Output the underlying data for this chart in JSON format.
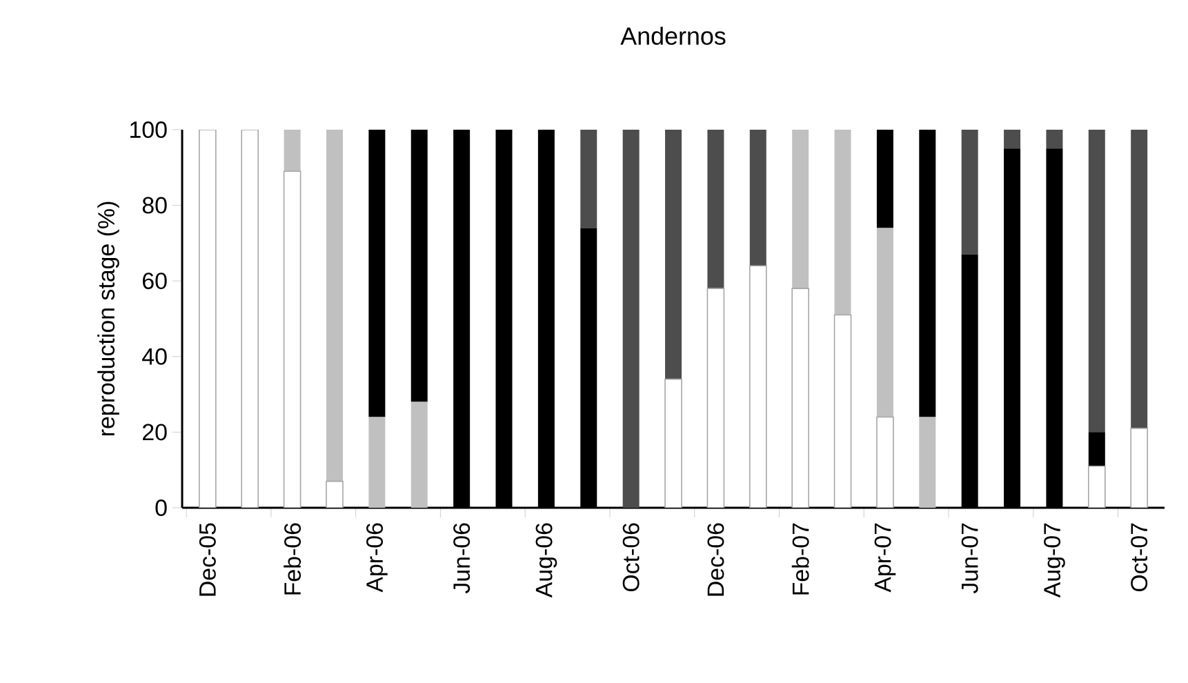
{
  "chart_data": {
    "type": "bar",
    "stacked": true,
    "title": "Andernos",
    "ylabel": "reproduction stage (%)",
    "categories": [
      "Dec-05",
      null,
      "Feb-06",
      null,
      "Apr-06",
      null,
      "Jun-06",
      null,
      "Aug-06",
      null,
      "Oct-06",
      null,
      "Dec-06",
      null,
      "Feb-07",
      null,
      "Apr-07",
      null,
      "Jun-07",
      null,
      "Aug-07",
      null,
      "Oct-07"
    ],
    "series": [
      {
        "color": "#ffffff",
        "values": [
          100,
          100,
          89,
          7,
          0,
          0,
          0,
          0,
          0,
          0,
          0,
          34,
          58,
          64,
          58,
          51,
          24,
          0,
          0,
          0,
          0,
          11,
          21
        ]
      },
      {
        "color": "#c0c0c0",
        "values": [
          0,
          0,
          11,
          93,
          24,
          28,
          0,
          0,
          0,
          0,
          0,
          0,
          0,
          0,
          42,
          49,
          50,
          24,
          0,
          0,
          0,
          0,
          0
        ]
      },
      {
        "color": "#000000",
        "values": [
          0,
          0,
          0,
          0,
          76,
          72,
          100,
          100,
          100,
          74,
          0,
          0,
          0,
          0,
          0,
          0,
          26,
          76,
          67,
          95,
          95,
          9,
          0
        ]
      },
      {
        "color": "#4d4d4d",
        "values": [
          0,
          0,
          0,
          0,
          0,
          0,
          0,
          0,
          0,
          26,
          100,
          66,
          42,
          36,
          0,
          0,
          0,
          0,
          33,
          5,
          5,
          80,
          79
        ]
      }
    ],
    "ylim": [
      0,
      100
    ],
    "yticks": [
      0,
      20,
      40,
      60,
      80,
      100
    ],
    "grid": false
  }
}
